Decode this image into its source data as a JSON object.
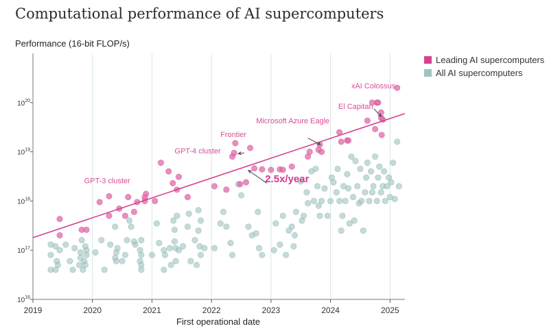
{
  "chart_data": {
    "type": "scatter",
    "title": "Computational performance of AI supercomputers",
    "ylabel": "Performance (16-bit FLOP/s)",
    "xlabel": "First operational date",
    "y_scale": "log",
    "ylim": [
      1e+16,
      1e+21
    ],
    "xlim": [
      2019.0,
      2025.25
    ],
    "y_ticks": [
      {
        "value": 1e+16,
        "base": "10",
        "exp": "16"
      },
      {
        "value": 1e+17,
        "base": "10",
        "exp": "17"
      },
      {
        "value": 1e+18,
        "base": "10",
        "exp": "18"
      },
      {
        "value": 1e+19,
        "base": "10",
        "exp": "19"
      },
      {
        "value": 1e+20,
        "base": "10",
        "exp": "20"
      }
    ],
    "x_ticks": [
      {
        "value": 2019,
        "label": "2019"
      },
      {
        "value": 2020,
        "label": "2020"
      },
      {
        "value": 2021,
        "label": "2021"
      },
      {
        "value": 2022,
        "label": "2022"
      },
      {
        "value": 2023,
        "label": "2023"
      },
      {
        "value": 2024,
        "label": "2024"
      },
      {
        "value": 2025,
        "label": "2025"
      }
    ],
    "grid": true,
    "legend_position": "top-right",
    "series": [
      {
        "name": "All AI supercomputers",
        "color": "#9fc3c0",
        "points": [
          [
            2019.3,
            1.3e+17
          ],
          [
            2019.3,
            4e+16
          ],
          [
            2019.3,
            8e+16
          ],
          [
            2019.38,
            1.2e+17
          ],
          [
            2019.38,
            4e+16
          ],
          [
            2019.4,
            6e+16
          ],
          [
            2019.42,
            5e+16
          ],
          [
            2019.45,
            1e+17
          ],
          [
            2019.55,
            1.3e+17
          ],
          [
            2019.62,
            6e+16
          ],
          [
            2019.67,
            4e+16
          ],
          [
            2019.7,
            1.1e+17
          ],
          [
            2019.78,
            5e+16
          ],
          [
            2019.8,
            7e+16
          ],
          [
            2019.8,
            9e+16
          ],
          [
            2019.82,
            1.6e+17
          ],
          [
            2019.84,
            4e+16
          ],
          [
            2019.86,
            6e+16
          ],
          [
            2019.88,
            1.2e+17
          ],
          [
            2019.88,
            5e+16
          ],
          [
            2019.9,
            8e+16
          ],
          [
            2019.9,
            1e+17
          ],
          [
            2020.05,
            9e+16
          ],
          [
            2020.15,
            1.6e+17
          ],
          [
            2020.2,
            4e+16
          ],
          [
            2020.3,
            1.3e+17
          ],
          [
            2020.38,
            3e+17
          ],
          [
            2020.38,
            7e+16
          ],
          [
            2020.4,
            9e+16
          ],
          [
            2020.4,
            6e+16
          ],
          [
            2020.42,
            1.1e+17
          ],
          [
            2020.5,
            6e+16
          ],
          [
            2020.55,
            8e+16
          ],
          [
            2020.58,
            1.6e+17
          ],
          [
            2020.62,
            4e+17
          ],
          [
            2020.65,
            3e+17
          ],
          [
            2020.7,
            1.5e+17
          ],
          [
            2020.72,
            1.3e+17
          ],
          [
            2020.8,
            1e+17
          ],
          [
            2020.8,
            6e+16
          ],
          [
            2020.82,
            4e+16
          ],
          [
            2020.82,
            5e+16
          ],
          [
            2020.82,
            8e+16
          ],
          [
            2020.82,
            1.6e+17
          ],
          [
            2021.0,
            8e+16
          ],
          [
            2021.08,
            3.5e+17
          ],
          [
            2021.12,
            1.4e+17
          ],
          [
            2021.2,
            4e+16
          ],
          [
            2021.2,
            1e+17
          ],
          [
            2021.22,
            8e+16
          ],
          [
            2021.3,
            1.1e+17
          ],
          [
            2021.32,
            5e+16
          ],
          [
            2021.36,
            4e+17
          ],
          [
            2021.38,
            2.6e+17
          ],
          [
            2021.38,
            1.5e+17
          ],
          [
            2021.4,
            1.1e+17
          ],
          [
            2021.4,
            6e+16
          ],
          [
            2021.42,
            5e+17
          ],
          [
            2021.45,
            1e+17
          ],
          [
            2021.52,
            1.2e+17
          ],
          [
            2021.6,
            3e+17
          ],
          [
            2021.62,
            5.5e+17
          ],
          [
            2021.65,
            6e+16
          ],
          [
            2021.72,
            1.6e+17
          ],
          [
            2021.75,
            5e+16
          ],
          [
            2021.78,
            6.5e+17
          ],
          [
            2021.78,
            2.5e+17
          ],
          [
            2021.8,
            1.2e+17
          ],
          [
            2021.82,
            4e+17
          ],
          [
            2021.82,
            8e+16
          ],
          [
            2021.88,
            1.1e+17
          ],
          [
            2022.05,
            1.1e+17
          ],
          [
            2022.15,
            3.5e+17
          ],
          [
            2022.2,
            6e+17
          ],
          [
            2022.25,
            3e+17
          ],
          [
            2022.32,
            1.4e+17
          ],
          [
            2022.35,
            8e+16
          ],
          [
            2022.45,
            2.2e+18
          ],
          [
            2022.5,
            1.3e+18
          ],
          [
            2022.62,
            3e+17
          ],
          [
            2022.68,
            2e+17
          ],
          [
            2022.75,
            2.2e+17
          ],
          [
            2022.78,
            6e+17
          ],
          [
            2022.8,
            1.1e+17
          ],
          [
            2022.85,
            8e+16
          ],
          [
            2023.05,
            1e+17
          ],
          [
            2023.08,
            3.5e+17
          ],
          [
            2023.15,
            1.3e+17
          ],
          [
            2023.2,
            5e+17
          ],
          [
            2023.25,
            8e+16
          ],
          [
            2023.3,
            2.5e+17
          ],
          [
            2023.35,
            3e+17
          ],
          [
            2023.38,
            1.2e+17
          ],
          [
            2023.4,
            2e+17
          ],
          [
            2023.42,
            6e+17
          ],
          [
            2023.5,
            2.5e+18
          ],
          [
            2023.52,
            4e+17
          ],
          [
            2023.55,
            5e+17
          ],
          [
            2023.6,
            1.5e+18
          ],
          [
            2023.62,
            9e+17
          ],
          [
            2023.68,
            4e+18
          ],
          [
            2023.72,
            1e+18
          ],
          [
            2023.75,
            4.5e+18
          ],
          [
            2023.78,
            2e+18
          ],
          [
            2023.8,
            8e+17
          ],
          [
            2023.82,
            5e+17
          ],
          [
            2023.85,
            1e+18
          ],
          [
            2023.9,
            1.8e+18
          ],
          [
            2023.95,
            5e+17
          ],
          [
            2024.0,
            1e+18
          ],
          [
            2024.02,
            3e+18
          ],
          [
            2024.05,
            2.4e+18
          ],
          [
            2024.1,
            1.5e+18
          ],
          [
            2024.12,
            4.5e+18
          ],
          [
            2024.15,
            1e+18
          ],
          [
            2024.18,
            2.5e+17
          ],
          [
            2024.2,
            5e+17
          ],
          [
            2024.22,
            2e+18
          ],
          [
            2024.25,
            1e+18
          ],
          [
            2024.28,
            3.5e+18
          ],
          [
            2024.3,
            1.8e+18
          ],
          [
            2024.32,
            3.5e+17
          ],
          [
            2024.35,
            8e+18
          ],
          [
            2024.38,
            1.2e+18
          ],
          [
            2024.4,
            4e+17
          ],
          [
            2024.42,
            6.5e+18
          ],
          [
            2024.45,
            2e+18
          ],
          [
            2024.48,
            9e+17
          ],
          [
            2024.5,
            4.5e+18
          ],
          [
            2024.52,
            1e+18
          ],
          [
            2024.55,
            2.5e+17
          ],
          [
            2024.58,
            1.5e+18
          ],
          [
            2024.6,
            3e+18
          ],
          [
            2024.62,
            6e+18
          ],
          [
            2024.65,
            1e+18
          ],
          [
            2024.68,
            4e+18
          ],
          [
            2024.7,
            1.5e+18
          ],
          [
            2024.72,
            2e+18
          ],
          [
            2024.75,
            8e+18
          ],
          [
            2024.78,
            1e+18
          ],
          [
            2024.8,
            3e+18
          ],
          [
            2024.82,
            5e+18
          ],
          [
            2024.85,
            1.5e+18
          ],
          [
            2024.88,
            2e+18
          ],
          [
            2024.9,
            4e+18
          ],
          [
            2024.92,
            1e+18
          ],
          [
            2024.95,
            2e+18
          ],
          [
            2024.98,
            3e+18
          ],
          [
            2025.0,
            1.2e+18
          ],
          [
            2025.02,
            2.4e+18
          ],
          [
            2025.05,
            6e+18
          ],
          [
            2025.08,
            1.1e+18
          ],
          [
            2025.12,
            1.6e+19
          ],
          [
            2025.15,
            2e+18
          ]
        ]
      },
      {
        "name": "Leading AI supercomputers",
        "color": "#e06aa8",
        "points": [
          [
            2019.45,
            4.3e+17
          ],
          [
            2019.45,
            2e+17
          ],
          [
            2019.82,
            2.6e+17
          ],
          [
            2019.9,
            2.6e+17
          ],
          [
            2020.12,
            9.5e+17
          ],
          [
            2020.28,
            5e+17
          ],
          [
            2020.28,
            1.25e+18
          ],
          [
            2020.45,
            7e+17
          ],
          [
            2020.55,
            5e+17
          ],
          [
            2020.6,
            1.2e+18
          ],
          [
            2020.7,
            6e+17
          ],
          [
            2020.75,
            9.5e+17
          ],
          [
            2020.88,
            1e+18
          ],
          [
            2020.88,
            1.2e+18
          ],
          [
            2020.9,
            1.4e+18
          ],
          [
            2021.05,
            1e+18
          ],
          [
            2021.15,
            6e+18
          ],
          [
            2021.28,
            4e+18
          ],
          [
            2021.35,
            2.3e+18
          ],
          [
            2021.42,
            1.7e+18
          ],
          [
            2021.45,
            3.1e+18
          ],
          [
            2021.6,
            1.2e+18
          ],
          [
            2022.05,
            2e+18
          ],
          [
            2022.25,
            1.7e+18
          ],
          [
            2022.35,
            8e+18
          ],
          [
            2022.38,
            9.5e+18
          ],
          [
            2022.4,
            1.5e+19
          ],
          [
            2022.48,
            2.2e+18
          ],
          [
            2022.58,
            2.4e+18
          ],
          [
            2022.65,
            1.2e+19
          ],
          [
            2022.72,
            4.6e+18
          ],
          [
            2022.85,
            4.4e+18
          ],
          [
            2023.0,
            4.3e+18
          ],
          [
            2023.15,
            4.4e+18
          ],
          [
            2023.2,
            4.3e+18
          ],
          [
            2023.35,
            5e+18
          ],
          [
            2023.62,
            8e+18
          ],
          [
            2023.65,
            1e+19
          ],
          [
            2023.8,
            1.1e+19
          ],
          [
            2023.82,
            1.4e+19
          ],
          [
            2023.85,
            1e+19
          ],
          [
            2024.15,
            2.5e+19
          ],
          [
            2024.18,
            1.6e+19
          ],
          [
            2024.28,
            1.7e+19
          ],
          [
            2024.3,
            1.7e+19
          ],
          [
            2024.62,
            4.3e+19
          ],
          [
            2024.7,
            1e+20
          ],
          [
            2024.75,
            2.9e+19
          ],
          [
            2024.78,
            1e+20
          ],
          [
            2024.8,
            1e+20
          ],
          [
            2024.85,
            4.9e+19
          ],
          [
            2024.85,
            6.3e+19
          ],
          [
            2024.86,
            2.2e+19
          ],
          [
            2024.88,
            4.5e+19
          ],
          [
            2025.12,
            2e+20
          ]
        ]
      }
    ],
    "trend_line": {
      "color": "#d63d92",
      "from": [
        2019.0,
        1.8e+17
      ],
      "to": [
        2025.25,
        6e+19
      ]
    },
    "annotations": [
      {
        "text": "GPT-3 cluster",
        "x": 2019.86,
        "y": 2.3e+18,
        "anchor": "start",
        "color": "#d84d95"
      },
      {
        "text": "GPT-4 cluster",
        "x": 2021.38,
        "y": 9.2e+18,
        "anchor": "start",
        "color": "#d84d95"
      },
      {
        "text": "Frontier",
        "x": 2022.15,
        "y": 2e+19,
        "anchor": "start",
        "color": "#d84d95"
      },
      {
        "text": "Microsoft Azure Eagle",
        "x": 2022.75,
        "y": 3.8e+19,
        "anchor": "start",
        "color": "#d84d95"
      },
      {
        "text": "El Capitan",
        "x": 2024.13,
        "y": 7.5e+19,
        "anchor": "start",
        "color": "#d84d95"
      },
      {
        "text": "xAI Colossus",
        "x": 2024.35,
        "y": 1.95e+20,
        "anchor": "start",
        "color": "#d84d95"
      },
      {
        "text": "2.5x/year",
        "x": 2022.9,
        "y": 2.4e+18,
        "anchor": "start",
        "color": "#d13a8c",
        "bold": true,
        "size": 15
      }
    ],
    "arrows": [
      {
        "from": [
          2022.55,
          9.5e+18
        ],
        "to": [
          2022.45,
          9.2e+18
        ]
      },
      {
        "from": [
          2023.62,
          1.9e+19
        ],
        "to": [
          2023.83,
          1.4e+19
        ]
      },
      {
        "from": [
          2024.73,
          7.5e+19
        ],
        "to": [
          2024.85,
          5.2e+19
        ]
      },
      {
        "from": [
          2022.93,
          2.3e+18
        ],
        "to": [
          2022.62,
          4.2e+18
        ]
      }
    ]
  }
}
